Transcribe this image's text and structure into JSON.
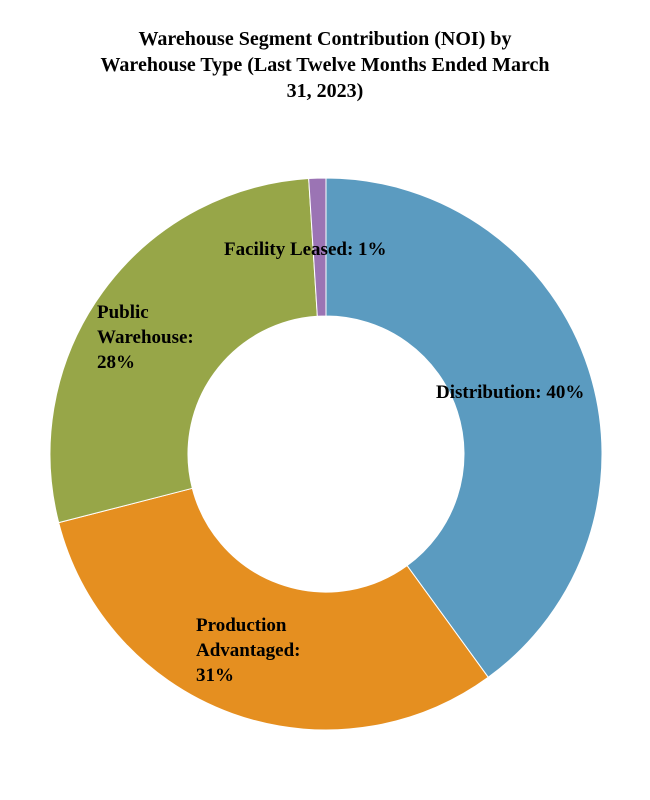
{
  "chart_data": {
    "type": "pie",
    "variant": "donut",
    "title_lines": [
      "Warehouse Segment Contribution (NOI) by",
      "Warehouse Type (Last Twelve Months Ended March",
      "31, 2023)"
    ],
    "title": "Warehouse Segment Contribution (NOI) by Warehouse Type (Last Twelve Months Ended March 31, 2023)",
    "start": "12 o'clock",
    "direction": "clockwise",
    "legend": "none (slices labeled directly)",
    "slices": [
      {
        "name": "Distribution",
        "value": 40,
        "color": "#5B9BC0",
        "label_lines": [
          "Distribution: 40%"
        ]
      },
      {
        "name": "Production Advantaged",
        "value": 31,
        "color": "#E58F20",
        "label_lines": [
          "Production",
          "Advantaged:",
          "31%"
        ]
      },
      {
        "name": "Public Warehouse",
        "value": 28,
        "color": "#97A648",
        "label_lines": [
          "Public",
          "Warehouse:",
          "28%"
        ]
      },
      {
        "name": "Facility Leased",
        "value": 1,
        "color": "#9B74B4",
        "label_lines": [
          "Facility Leased: 1%"
        ]
      }
    ]
  }
}
